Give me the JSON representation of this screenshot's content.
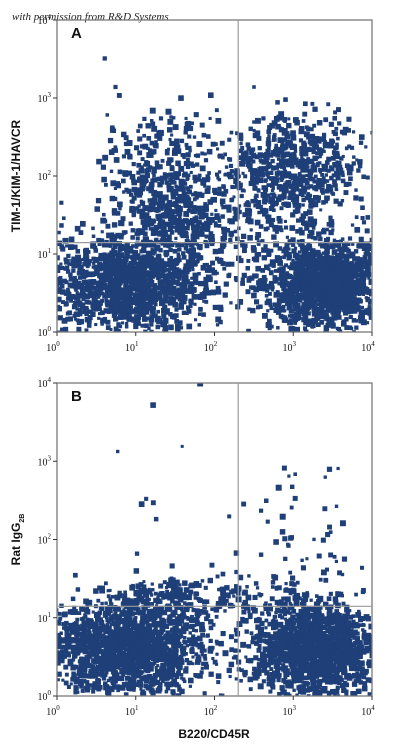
{
  "watermark": "with permission from R&D Systems",
  "colors": {
    "dots": "#1f3f78",
    "frame": "#7a7a7a",
    "gate": "#9a9a9a"
  },
  "x_axis_label": "B220/CD45R",
  "chart_data": [
    {
      "type": "scatter",
      "subtype": "flow-cytometry-density",
      "panel": "A",
      "ylabel": "TIM-1/KIM-1/HAVCR",
      "ylabel_sub": "",
      "xlabel": "",
      "x_scale": "log",
      "y_scale": "log",
      "xlim": [
        1,
        10000
      ],
      "ylim": [
        1,
        10000
      ],
      "x_ticks": [
        {
          "base": "10",
          "exp": "0"
        },
        {
          "base": "10",
          "exp": "1"
        },
        {
          "base": "10",
          "exp": "2"
        },
        {
          "base": "10",
          "exp": "3"
        },
        {
          "base": "10",
          "exp": "4"
        }
      ],
      "y_ticks": [
        {
          "base": "10",
          "exp": "0"
        },
        {
          "base": "10",
          "exp": "1"
        },
        {
          "base": "10",
          "exp": "2"
        },
        {
          "base": "10",
          "exp": "3"
        },
        {
          "base": "10",
          "exp": "4"
        }
      ],
      "quadrant_gate": {
        "x": 200,
        "y": 14
      },
      "populations": [
        {
          "cx": 8,
          "cy": 4,
          "sx": 0.55,
          "sy": 0.3,
          "n": 1400
        },
        {
          "cx": 2500,
          "cy": 4,
          "sx": 0.4,
          "sy": 0.3,
          "n": 1400
        },
        {
          "cx": 1000,
          "cy": 120,
          "sx": 0.4,
          "sy": 0.35,
          "n": 650
        },
        {
          "cx": 25,
          "cy": 80,
          "sx": 0.4,
          "sy": 0.45,
          "n": 450
        },
        {
          "cx": 50,
          "cy": 25,
          "sx": 0.5,
          "sy": 0.25,
          "n": 300
        }
      ]
    },
    {
      "type": "scatter",
      "subtype": "flow-cytometry-density",
      "panel": "B",
      "ylabel": "Rat IgG",
      "ylabel_sub": "2B",
      "xlabel": "B220/CD45R",
      "x_scale": "log",
      "y_scale": "log",
      "xlim": [
        1,
        10000
      ],
      "ylim": [
        1,
        10000
      ],
      "x_ticks": [
        {
          "base": "10",
          "exp": "0"
        },
        {
          "base": "10",
          "exp": "1"
        },
        {
          "base": "10",
          "exp": "2"
        },
        {
          "base": "10",
          "exp": "3"
        },
        {
          "base": "10",
          "exp": "4"
        }
      ],
      "y_ticks": [
        {
          "base": "10",
          "exp": "0"
        },
        {
          "base": "10",
          "exp": "1"
        },
        {
          "base": "10",
          "exp": "2"
        },
        {
          "base": "10",
          "exp": "3"
        },
        {
          "base": "10",
          "exp": "4"
        }
      ],
      "quadrant_gate": {
        "x": 200,
        "y": 14
      },
      "populations": [
        {
          "cx": 8,
          "cy": 4,
          "sx": 0.5,
          "sy": 0.3,
          "n": 1600
        },
        {
          "cx": 2000,
          "cy": 4,
          "sx": 0.4,
          "sy": 0.3,
          "n": 1500
        },
        {
          "cx": 40,
          "cy": 16,
          "sx": 0.6,
          "sy": 0.15,
          "n": 250
        },
        {
          "cx": 1500,
          "cy": 60,
          "sx": 0.4,
          "sy": 0.6,
          "n": 60
        },
        {
          "cx": 30,
          "cy": 200,
          "sx": 0.8,
          "sy": 0.8,
          "n": 20
        }
      ]
    }
  ]
}
